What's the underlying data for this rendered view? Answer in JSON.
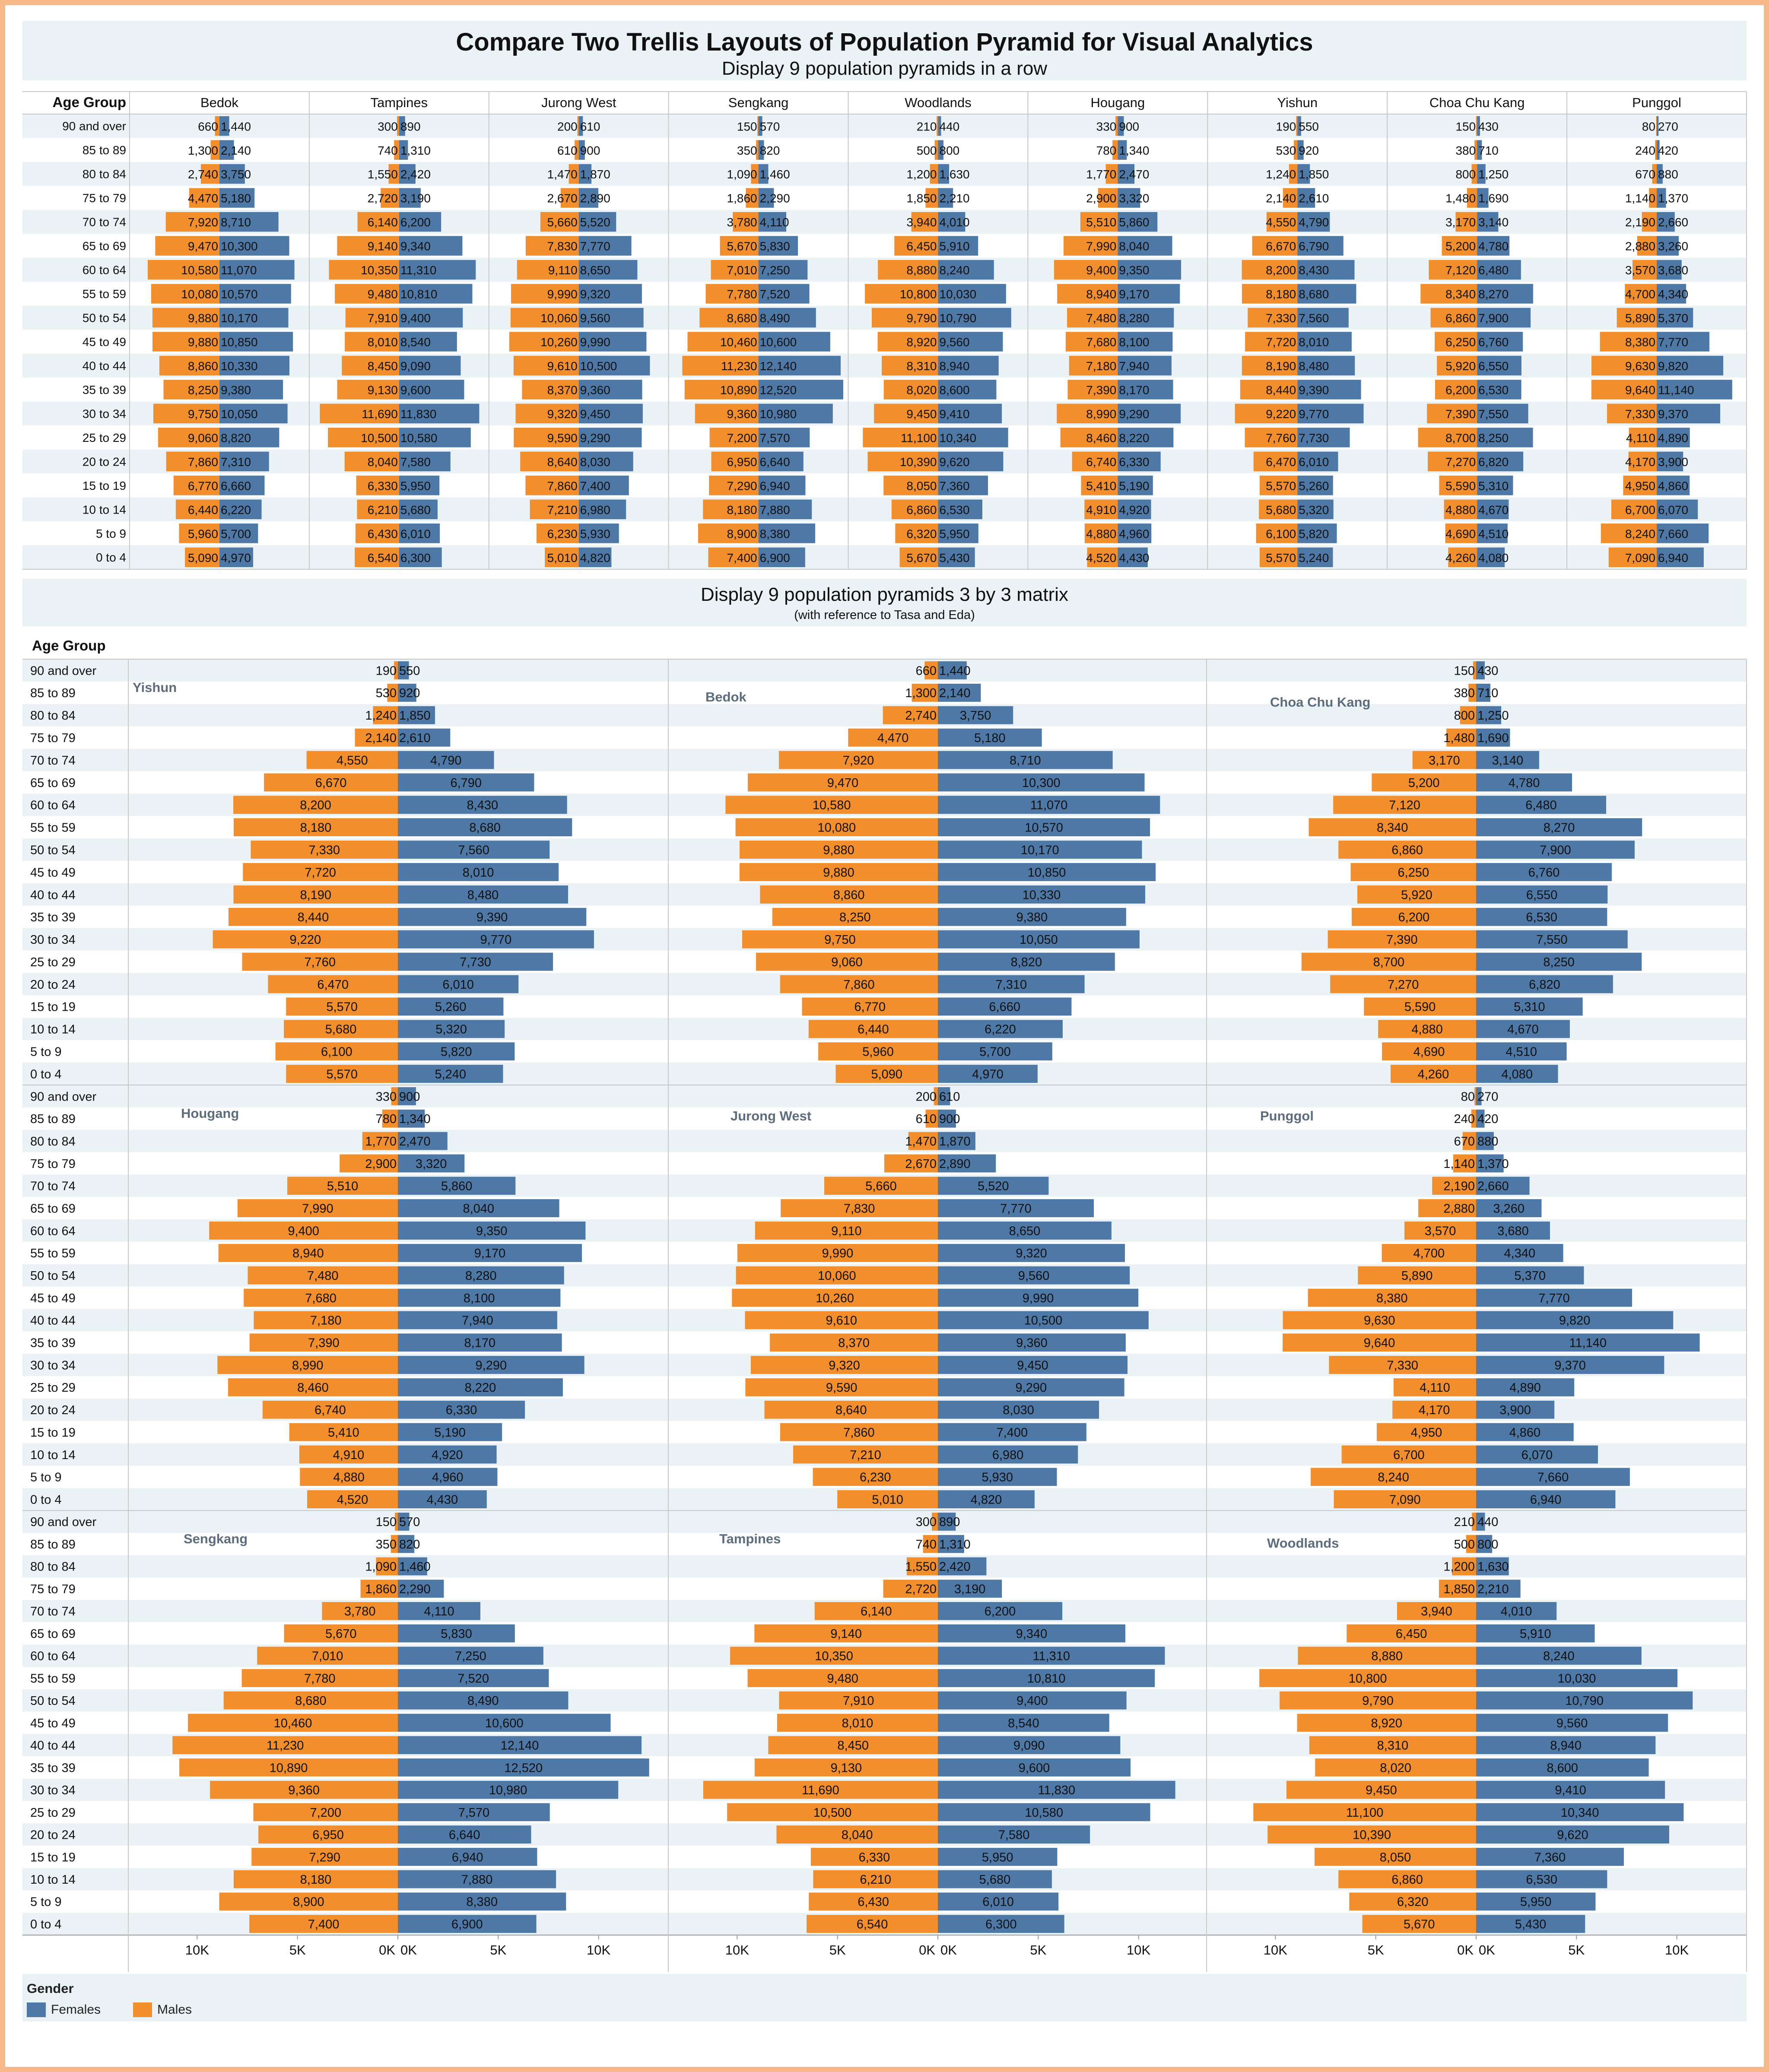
{
  "title": "Compare Two Trellis Layouts of Population Pyramid for Visual Analytics",
  "subtitle_row": "Display 9 population pyramids in a row",
  "subtitle_matrix": "Display 9 population pyramids 3 by 3 matrix",
  "subtitle_matrix_note": "(with reference to Tasa and Eda)",
  "age_group_label": "Age Group",
  "axis_ticks": [
    "10K",
    "5K",
    "0K",
    "0K",
    "5K",
    "10K"
  ],
  "legend": {
    "title": "Gender",
    "items": [
      {
        "label": "Females",
        "color": "#4e79a7"
      },
      {
        "label": "Males",
        "color": "#f28e2b"
      }
    ]
  },
  "chart_data": {
    "type": "bar",
    "orientation": "horizontal-pyramid",
    "age_groups": [
      "90 and over",
      "85 to 89",
      "80 to 84",
      "75 to 79",
      "70 to 74",
      "65 to 69",
      "60 to 64",
      "55 to 59",
      "50 to 54",
      "45 to 49",
      "40 to 44",
      "35 to 39",
      "30 to 34",
      "25 to 29",
      "20 to 24",
      "15 to 19",
      "10 to 14",
      "5 to 9",
      "0 to 4"
    ],
    "x_range": [
      -13000,
      13000
    ],
    "colors": {
      "Females": "#4e79a7",
      "Males": "#f28e2b"
    },
    "row_order": [
      "Bedok",
      "Tampines",
      "Jurong West",
      "Sengkang",
      "Woodlands",
      "Hougang",
      "Yishun",
      "Choa Chu Kang",
      "Punggol"
    ],
    "matrix_order": [
      [
        "Yishun",
        "Bedok",
        "Choa Chu Kang"
      ],
      [
        "Hougang",
        "Jurong West",
        "Punggol"
      ],
      [
        "Sengkang",
        "Tampines",
        "Woodlands"
      ]
    ],
    "areas": {
      "Bedok": {
        "males": [
          660,
          1300,
          2740,
          4470,
          7920,
          9470,
          10580,
          10080,
          9880,
          9880,
          8860,
          8250,
          9750,
          9060,
          7860,
          6770,
          6440,
          5960,
          5090
        ],
        "females": [
          1440,
          2140,
          3750,
          5180,
          8710,
          10300,
          11070,
          10570,
          10170,
          10850,
          10330,
          9380,
          10050,
          8820,
          7310,
          6660,
          6220,
          5700,
          4970
        ]
      },
      "Tampines": {
        "males": [
          300,
          740,
          1550,
          2720,
          6140,
          9140,
          10350,
          9480,
          7910,
          8010,
          8450,
          9130,
          11690,
          10500,
          8040,
          6330,
          6210,
          6430,
          6540
        ],
        "females": [
          890,
          1310,
          2420,
          3190,
          6200,
          9340,
          11310,
          10810,
          9400,
          8540,
          9090,
          9600,
          11830,
          10580,
          7580,
          5950,
          5680,
          6010,
          6300
        ]
      },
      "Jurong West": {
        "males": [
          200,
          610,
          1470,
          2670,
          5660,
          7830,
          9110,
          9990,
          10060,
          10260,
          9610,
          8370,
          9320,
          9590,
          8640,
          7860,
          7210,
          6230,
          5010
        ],
        "females": [
          610,
          900,
          1870,
          2890,
          5520,
          7770,
          8650,
          9320,
          9560,
          9990,
          10500,
          9360,
          9450,
          9290,
          8030,
          7400,
          6980,
          5930,
          4820
        ]
      },
      "Sengkang": {
        "males": [
          150,
          350,
          1090,
          1860,
          3780,
          5670,
          7010,
          7780,
          8680,
          10460,
          11230,
          10890,
          9360,
          7200,
          6950,
          7290,
          8180,
          8900,
          7400
        ],
        "females": [
          570,
          820,
          1460,
          2290,
          4110,
          5830,
          7250,
          7520,
          8490,
          10600,
          12140,
          12520,
          10980,
          7570,
          6640,
          6940,
          7880,
          8380,
          6900
        ]
      },
      "Woodlands": {
        "males": [
          210,
          500,
          1200,
          1850,
          3940,
          6450,
          8880,
          10800,
          9790,
          8920,
          8310,
          8020,
          9450,
          11100,
          10390,
          8050,
          6860,
          6320,
          5670
        ],
        "females": [
          440,
          800,
          1630,
          2210,
          4010,
          5910,
          8240,
          10030,
          10790,
          9560,
          8940,
          8600,
          9410,
          10340,
          9620,
          7360,
          6530,
          5950,
          5430
        ]
      },
      "Hougang": {
        "males": [
          330,
          780,
          1770,
          2900,
          5510,
          7990,
          9400,
          8940,
          7480,
          7680,
          7180,
          7390,
          8990,
          8460,
          6740,
          5410,
          4910,
          4880,
          4520
        ],
        "females": [
          900,
          1340,
          2470,
          3320,
          5860,
          8040,
          9350,
          9170,
          8280,
          8100,
          7940,
          8170,
          9290,
          8220,
          6330,
          5190,
          4920,
          4960,
          4430
        ]
      },
      "Yishun": {
        "males": [
          190,
          530,
          1240,
          2140,
          4550,
          6670,
          8200,
          8180,
          7330,
          7720,
          8190,
          8440,
          9220,
          7760,
          6470,
          5570,
          5680,
          6100,
          5570
        ],
        "females": [
          550,
          920,
          1850,
          2610,
          4790,
          6790,
          8430,
          8680,
          7560,
          8010,
          8480,
          9390,
          9770,
          7730,
          6010,
          5260,
          5320,
          5820,
          5240
        ]
      },
      "Choa Chu Kang": {
        "males": [
          150,
          380,
          800,
          1480,
          3170,
          5200,
          7120,
          8340,
          6860,
          6250,
          5920,
          6200,
          7390,
          8700,
          7270,
          5590,
          4880,
          4690,
          4260
        ],
        "females": [
          430,
          710,
          1250,
          1690,
          3140,
          4780,
          6480,
          8270,
          7900,
          6760,
          6550,
          6530,
          7550,
          8250,
          6820,
          5310,
          4670,
          4510,
          4080
        ]
      },
      "Punggol": {
        "males": [
          80,
          240,
          670,
          1140,
          2190,
          2880,
          3570,
          4700,
          5890,
          8380,
          9630,
          9640,
          7330,
          4110,
          4170,
          4950,
          6700,
          8240,
          7090
        ],
        "females": [
          270,
          420,
          880,
          1370,
          2660,
          3260,
          3680,
          4340,
          5370,
          7770,
          9820,
          11140,
          9370,
          4890,
          3900,
          4860,
          6070,
          7660,
          6940
        ]
      }
    }
  }
}
